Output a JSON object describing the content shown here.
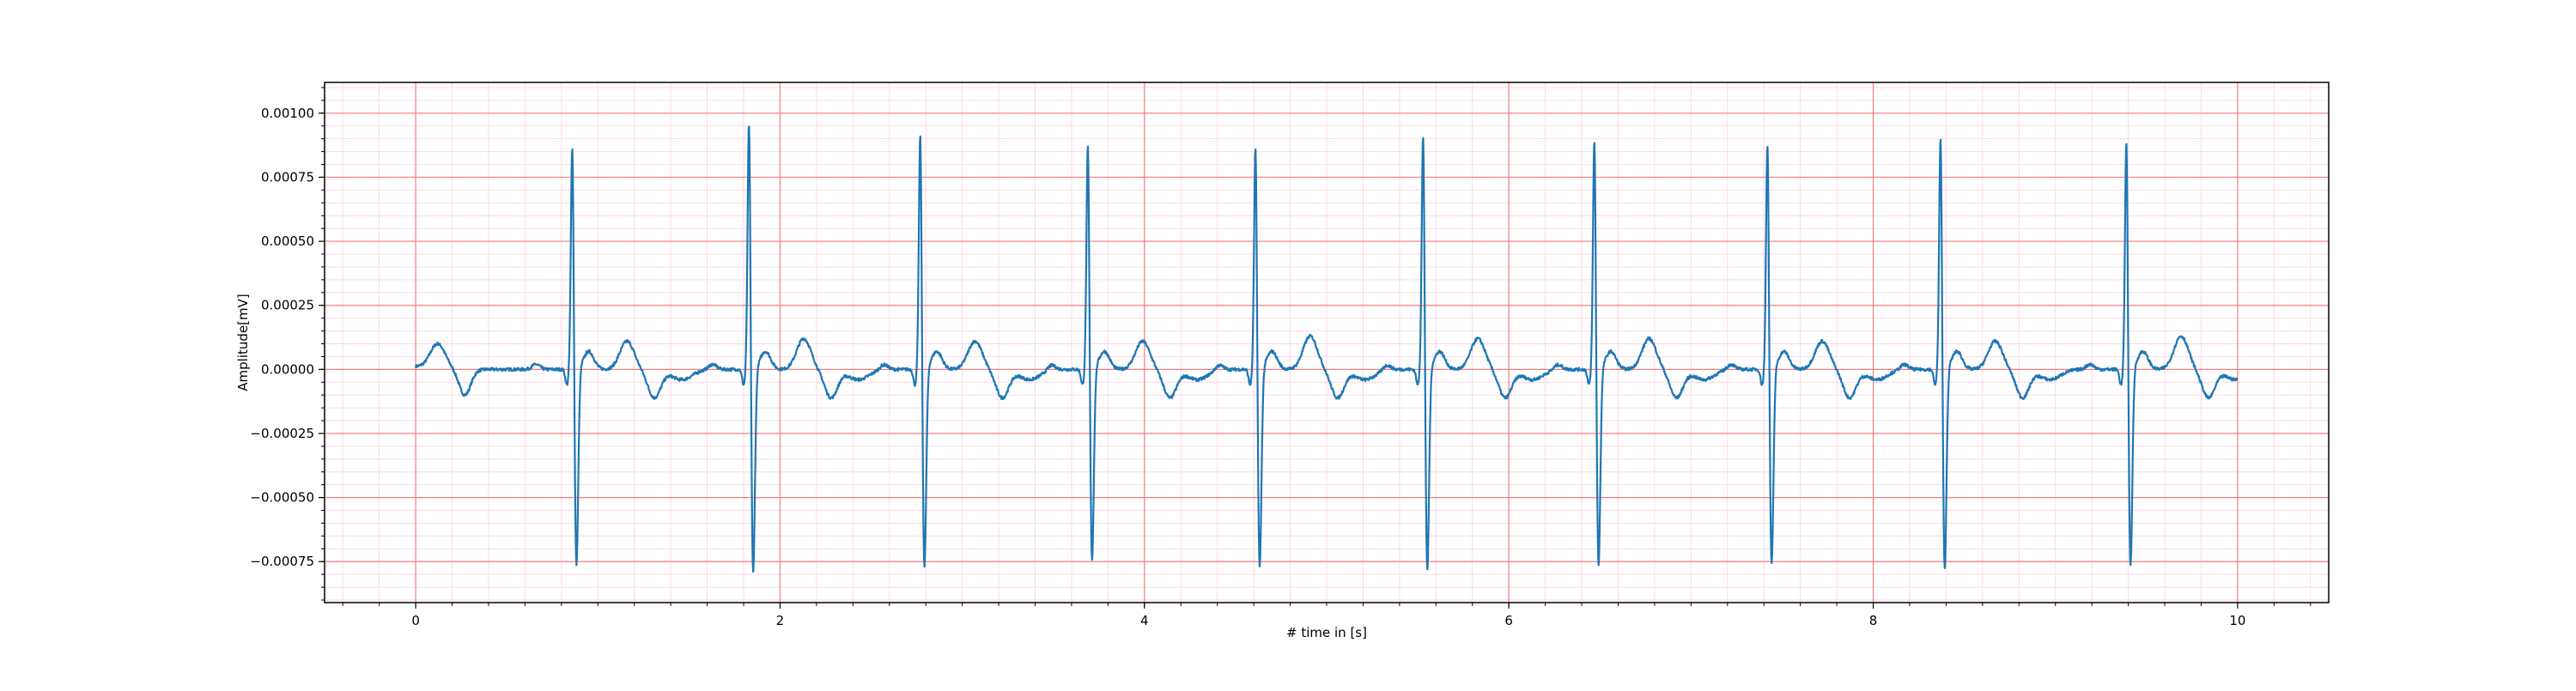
{
  "chart_data": {
    "type": "line",
    "title": "",
    "xlabel": "# time in [s]",
    "ylabel": "Amplitude[mV]",
    "xlim": [
      -0.5,
      10.5
    ],
    "ylim": [
      -0.00091,
      0.00112
    ],
    "x_ticks": [
      0,
      2,
      4,
      6,
      8,
      10
    ],
    "x_tick_labels": [
      "0",
      "2",
      "4",
      "6",
      "8",
      "10"
    ],
    "y_ticks": [
      0.001,
      0.00075,
      0.0005,
      0.00025,
      0.0,
      -0.00025,
      -0.0005,
      -0.00075
    ],
    "y_tick_labels": [
      "0.00100",
      "0.00075",
      "0.00050",
      "0.00025",
      "0.00000",
      "−0.00025",
      "−0.00050",
      "−0.00075"
    ],
    "grid": {
      "major": true,
      "minor": true,
      "major_color": "#f08080",
      "minor_color": "#ffd6e6"
    },
    "line_color": "#1f77b4",
    "sampling_rate_hz": 100,
    "duration_s": 10,
    "beats": [
      {
        "r_time": 0.86,
        "r_peak": 0.00093,
        "s_trough": -0.00078,
        "t_peak": 0.00011
      },
      {
        "r_time": 1.83,
        "r_peak": 0.00102,
        "s_trough": -0.00081,
        "t_peak": 0.00012
      },
      {
        "r_time": 2.77,
        "r_peak": 0.00097,
        "s_trough": -0.00079,
        "t_peak": 0.00011
      },
      {
        "r_time": 3.69,
        "r_peak": 0.00093,
        "s_trough": -0.00076,
        "t_peak": 0.00011
      },
      {
        "r_time": 4.61,
        "r_peak": 0.00092,
        "s_trough": -0.00079,
        "t_peak": 0.00013
      },
      {
        "r_time": 5.53,
        "r_peak": 0.00097,
        "s_trough": -0.0008,
        "t_peak": 0.00012
      },
      {
        "r_time": 6.47,
        "r_peak": 0.00095,
        "s_trough": -0.00078,
        "t_peak": 0.00012
      },
      {
        "r_time": 7.42,
        "r_peak": 0.00094,
        "s_trough": -0.00078,
        "t_peak": 0.00011
      },
      {
        "r_time": 8.37,
        "r_peak": 0.00096,
        "s_trough": -0.0008,
        "t_peak": 0.00011
      },
      {
        "r_time": 9.39,
        "r_peak": 0.00094,
        "s_trough": -0.00078,
        "t_peak": 0.00013
      }
    ],
    "start_value": 1e-05,
    "start_bump_peak": 0.0001
  }
}
